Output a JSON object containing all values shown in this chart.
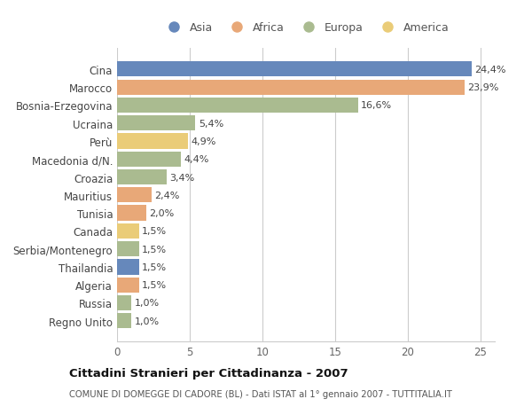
{
  "categories": [
    "Cina",
    "Marocco",
    "Bosnia-Erzegovina",
    "Ucraina",
    "Perù",
    "Macedonia d/N.",
    "Croazia",
    "Mauritius",
    "Tunisia",
    "Canada",
    "Serbia/Montenegro",
    "Thailandia",
    "Algeria",
    "Russia",
    "Regno Unito"
  ],
  "values": [
    24.4,
    23.9,
    16.6,
    5.4,
    4.9,
    4.4,
    3.4,
    2.4,
    2.0,
    1.5,
    1.5,
    1.5,
    1.5,
    1.0,
    1.0
  ],
  "labels": [
    "24,4%",
    "23,9%",
    "16,6%",
    "5,4%",
    "4,9%",
    "4,4%",
    "3,4%",
    "2,4%",
    "2,0%",
    "1,5%",
    "1,5%",
    "1,5%",
    "1,5%",
    "1,0%",
    "1,0%"
  ],
  "continents": [
    "Asia",
    "Africa",
    "Europa",
    "Europa",
    "America",
    "Europa",
    "Europa",
    "Africa",
    "Africa",
    "America",
    "Europa",
    "Asia",
    "Africa",
    "Europa",
    "Europa"
  ],
  "colors": {
    "Asia": "#6688bb",
    "Africa": "#e8a878",
    "Europa": "#aabb90",
    "America": "#eacc78"
  },
  "legend_order": [
    "Asia",
    "Africa",
    "Europa",
    "America"
  ],
  "title": "Cittadini Stranieri per Cittadinanza - 2007",
  "subtitle": "COMUNE DI DOMEGGE DI CADORE (BL) - Dati ISTAT al 1° gennaio 2007 - TUTTITALIA.IT",
  "xlim": [
    0,
    26
  ],
  "xticks": [
    0,
    5,
    10,
    15,
    20,
    25
  ],
  "background_color": "#ffffff",
  "grid_color": "#cccccc"
}
